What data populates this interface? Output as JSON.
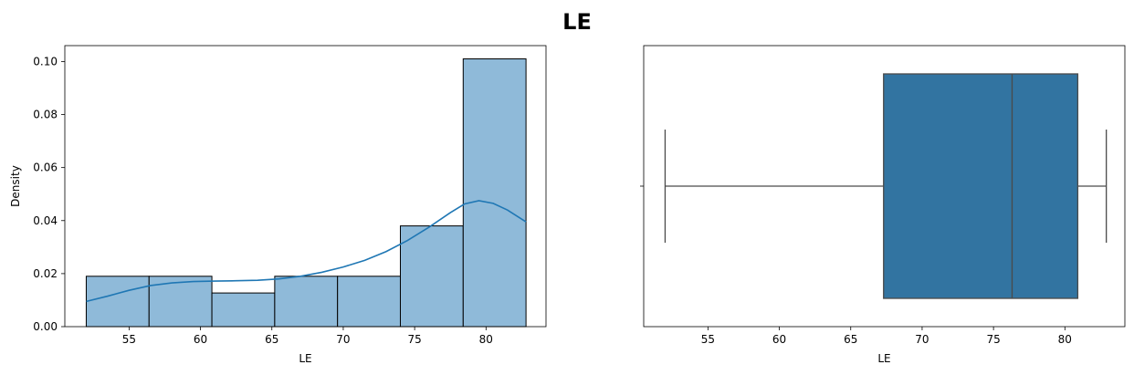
{
  "figure": {
    "title": "LE"
  },
  "chart_data": [
    {
      "type": "bar",
      "subtype": "histogram-with-kde",
      "xlabel": "LE",
      "ylabel": "Density",
      "xlim": [
        50.5,
        84.2
      ],
      "ylim": [
        0,
        0.106
      ],
      "xticks": [
        55,
        60,
        65,
        70,
        75,
        80
      ],
      "yticks": [
        0.0,
        0.02,
        0.04,
        0.06,
        0.08,
        0.1
      ],
      "ytick_labels": [
        "0.00",
        "0.02",
        "0.04",
        "0.06",
        "0.08",
        "0.10"
      ],
      "bins": [
        {
          "x0": 52.0,
          "x1": 56.4,
          "value": 0.019
        },
        {
          "x0": 56.4,
          "x1": 60.8,
          "value": 0.019
        },
        {
          "x0": 60.8,
          "x1": 65.2,
          "value": 0.0127
        },
        {
          "x0": 65.2,
          "x1": 69.6,
          "value": 0.019
        },
        {
          "x0": 69.6,
          "x1": 74.0,
          "value": 0.019
        },
        {
          "x0": 74.0,
          "x1": 78.4,
          "value": 0.038
        },
        {
          "x0": 78.4,
          "x1": 82.8,
          "value": 0.101
        }
      ],
      "kde": {
        "x": [
          52.0,
          53.5,
          55.0,
          56.5,
          58.0,
          59.5,
          61.0,
          62.5,
          64.0,
          65.5,
          67.0,
          68.5,
          70.0,
          71.5,
          73.0,
          74.5,
          76.0,
          77.5,
          78.5,
          79.5,
          80.5,
          81.5,
          82.8
        ],
        "y": [
          0.0095,
          0.0115,
          0.0137,
          0.0155,
          0.0165,
          0.017,
          0.0172,
          0.0173,
          0.0175,
          0.018,
          0.019,
          0.0205,
          0.0225,
          0.025,
          0.0283,
          0.0325,
          0.0375,
          0.043,
          0.0463,
          0.0475,
          0.0465,
          0.044,
          0.0395
        ]
      },
      "colors": {
        "bar_fill": "#8fbad9",
        "bar_edge": "#000000",
        "kde_line": "#1f77b4"
      },
      "grid": false,
      "legend": "none"
    },
    {
      "type": "box",
      "orientation": "horizontal",
      "xlabel": "LE",
      "xlim": [
        50.5,
        84.2
      ],
      "xticks": [
        55,
        60,
        65,
        70,
        75,
        80
      ],
      "whisker_low": 52.0,
      "q1": 67.3,
      "median": 76.3,
      "q3": 80.9,
      "whisker_high": 82.9,
      "colors": {
        "box_fill": "#3274a1",
        "line": "#4a4a4a"
      },
      "grid": false,
      "legend": "none"
    }
  ]
}
